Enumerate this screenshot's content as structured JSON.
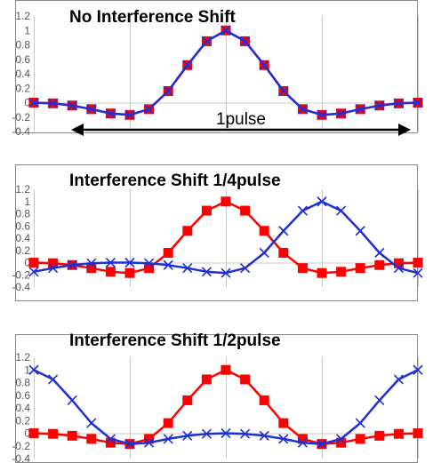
{
  "colors": {
    "red_series": "#ff0000",
    "blue_series": "#1f2fd6",
    "grid": "#c8c8c8",
    "frame": "#8a8a8a"
  },
  "chart_data": [
    {
      "type": "line",
      "title": "No Interference Shift",
      "x": [
        -10,
        -9,
        -8,
        -7,
        -6,
        -5,
        -4,
        -3,
        -2,
        -1,
        0,
        1,
        2,
        3,
        4,
        5,
        6,
        7,
        8,
        9,
        10
      ],
      "ylim": [
        -0.4,
        1.2
      ],
      "yticks": [
        "1.2",
        "1",
        "0.8",
        "0.6",
        "0.4",
        "0.2",
        "0",
        "-0.2",
        "-0.4"
      ],
      "grid": true,
      "series": [
        {
          "marker": "square",
          "color": "#ff0000",
          "values": [
            0,
            -0.01,
            -0.04,
            -0.09,
            -0.15,
            -0.17,
            -0.09,
            0.16,
            0.52,
            0.85,
            1.0,
            0.85,
            0.52,
            0.16,
            -0.09,
            -0.17,
            -0.15,
            -0.09,
            -0.04,
            -0.01,
            0
          ]
        },
        {
          "marker": "x",
          "color": "#1f2fd6",
          "values": [
            0,
            -0.01,
            -0.04,
            -0.09,
            -0.15,
            -0.17,
            -0.09,
            0.16,
            0.52,
            0.85,
            1.0,
            0.85,
            0.52,
            0.16,
            -0.09,
            -0.17,
            -0.15,
            -0.09,
            -0.04,
            -0.01,
            0
          ]
        }
      ],
      "annotation": {
        "label": "1pulse",
        "x_from": -10,
        "x_to": 10,
        "y": -0.33
      }
    },
    {
      "type": "line",
      "title": "Interference Shift 1/4pulse",
      "x": [
        -10,
        -9,
        -8,
        -7,
        -6,
        -5,
        -4,
        -3,
        -2,
        -1,
        0,
        1,
        2,
        3,
        4,
        5,
        6,
        7,
        8,
        9,
        10
      ],
      "ylim": [
        -0.4,
        1.2
      ],
      "yticks": [
        "1.2",
        "1",
        "0.8",
        "0.6",
        "0.4",
        "0.2",
        "0",
        "-0.2",
        "-0.4"
      ],
      "grid": true,
      "series": [
        {
          "marker": "square",
          "color": "#ff0000",
          "values": [
            0,
            -0.01,
            -0.04,
            -0.09,
            -0.15,
            -0.17,
            -0.09,
            0.16,
            0.52,
            0.85,
            1.0,
            0.85,
            0.52,
            0.16,
            -0.09,
            -0.17,
            -0.15,
            -0.09,
            -0.04,
            -0.01,
            0
          ]
        },
        {
          "marker": "x",
          "color": "#1f2fd6",
          "values": [
            -0.15,
            -0.09,
            -0.04,
            -0.01,
            0,
            0,
            -0.01,
            -0.04,
            -0.09,
            -0.15,
            -0.17,
            -0.09,
            0.16,
            0.52,
            0.85,
            1.0,
            0.85,
            0.52,
            0.16,
            -0.09,
            -0.17
          ]
        }
      ]
    },
    {
      "type": "line",
      "title": "Interference Shift 1/2pulse",
      "x": [
        -10,
        -9,
        -8,
        -7,
        -6,
        -5,
        -4,
        -3,
        -2,
        -1,
        0,
        1,
        2,
        3,
        4,
        5,
        6,
        7,
        8,
        9,
        10
      ],
      "ylim": [
        -0.4,
        1.2
      ],
      "yticks": [
        "1.2",
        "1",
        "0.8",
        "0.6",
        "0.4",
        "0.2",
        "0",
        "-0.2",
        "-0.4"
      ],
      "grid": true,
      "series": [
        {
          "marker": "square",
          "color": "#ff0000",
          "values": [
            0,
            -0.01,
            -0.04,
            -0.09,
            -0.15,
            -0.17,
            -0.09,
            0.16,
            0.52,
            0.85,
            1.0,
            0.85,
            0.52,
            0.16,
            -0.09,
            -0.17,
            -0.15,
            -0.09,
            -0.04,
            -0.01,
            0
          ]
        },
        {
          "marker": "x",
          "color": "#1f2fd6",
          "values": [
            1.0,
            0.85,
            0.52,
            0.16,
            -0.09,
            -0.17,
            -0.15,
            -0.09,
            -0.04,
            -0.01,
            0,
            -0.01,
            -0.04,
            -0.09,
            -0.15,
            -0.17,
            -0.09,
            0.16,
            0.52,
            0.85,
            1.0
          ]
        }
      ]
    }
  ]
}
